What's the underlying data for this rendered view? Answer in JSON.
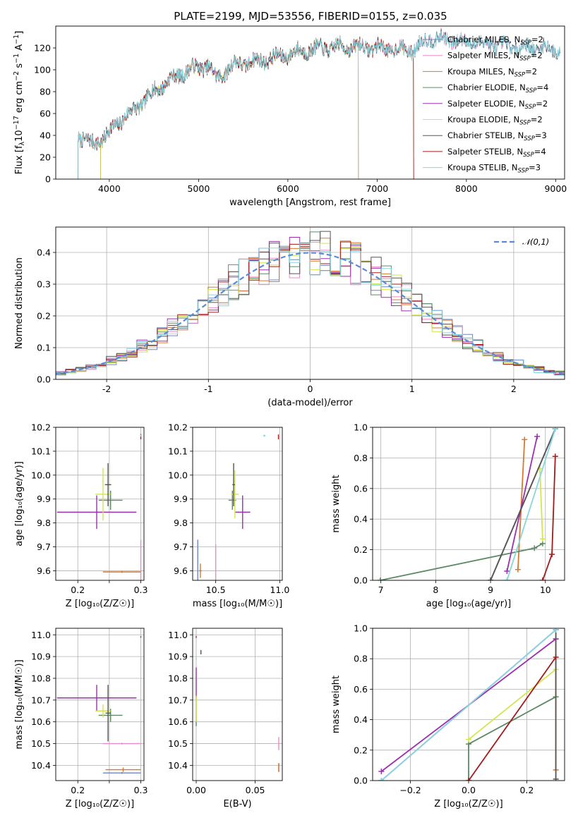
{
  "figure": {
    "title": "PLATE=2199, MJD=53556, FIBERID=0155, z=0.035"
  },
  "series_style": [
    {
      "id": "chabrier_miles",
      "color": "#6b86c8"
    },
    {
      "id": "salpeter_miles",
      "color": "#e88bc8"
    },
    {
      "id": "kroupa_miles",
      "color": "#d9782d"
    },
    {
      "id": "chabrier_elodie",
      "color": "#5d8a64"
    },
    {
      "id": "salpeter_elodie",
      "color": "#9b2fb0"
    },
    {
      "id": "kroupa_elodie",
      "color": "#d2e64f"
    },
    {
      "id": "chabrier_stelib",
      "color": "#555555"
    },
    {
      "id": "salpeter_stelib",
      "color": "#a31a1a"
    },
    {
      "id": "kroupa_stelib",
      "color": "#86d6df"
    }
  ],
  "chart_data": [
    {
      "id": "spectrum",
      "type": "line",
      "xlabel": "wavelength [Angstrom, rest frame]",
      "ylabel_parts": [
        "Flux [f",
        "λ",
        "10",
        "−17",
        " erg cm",
        "−2",
        " s",
        "−1",
        " A",
        "−1",
        "]"
      ],
      "xlim": [
        3400,
        9100
      ],
      "ylim": [
        0,
        140
      ],
      "xticks": [
        4000,
        5000,
        6000,
        7000,
        8000,
        9000
      ],
      "yticks": [
        0,
        20,
        40,
        60,
        80,
        100,
        120
      ],
      "grid": false,
      "legend_position": "top-right",
      "series": [
        {
          "label": "Chabrier MILES, N",
          "sub": "SSP",
          "tail": "=2",
          "range": [
            3650,
            9050
          ]
        },
        {
          "label": "Salpeter MILES, N",
          "sub": "SSP",
          "tail": "=2",
          "range": [
            3650,
            9050
          ]
        },
        {
          "label": "Kroupa MILES, N",
          "sub": "SSP",
          "tail": "=2",
          "range": [
            3650,
            7410
          ]
        },
        {
          "label": "Chabrier ELODIE, N",
          "sub": "SSP",
          "tail": "=4",
          "range": [
            3900,
            6790
          ]
        },
        {
          "label": "Salpeter ELODIE, N",
          "sub": "SSP",
          "tail": "=2",
          "range": [
            3900,
            6790
          ]
        },
        {
          "label": "Kroupa ELODIE, N",
          "sub": "SSP",
          "tail": "=2",
          "range": [
            3900,
            6790
          ]
        },
        {
          "label": "Chabrier STELIB, N",
          "sub": "SSP",
          "tail": "=3",
          "range": [
            3650,
            9050
          ]
        },
        {
          "label": "Salpeter STELIB, N",
          "sub": "SSP",
          "tail": "=4",
          "range": [
            3650,
            7410
          ]
        },
        {
          "label": "Kroupa STELIB, N",
          "sub": "SSP",
          "tail": "=3",
          "range": [
            3650,
            9050
          ]
        }
      ],
      "continuum": {
        "x": [
          3650,
          3800,
          3950,
          4100,
          4300,
          4500,
          4700,
          4900,
          5100,
          5200,
          5400,
          5600,
          5800,
          6000,
          6200,
          6400,
          6600,
          6800,
          7000,
          7200,
          7400,
          7600,
          7800,
          8000,
          8200,
          8400,
          8600,
          8800,
          9050
        ],
        "y": [
          40,
          32,
          38,
          52,
          65,
          80,
          92,
          100,
          104,
          92,
          105,
          107,
          110,
          114,
          118,
          120,
          121,
          121,
          120,
          119,
          118,
          130,
          127,
          126,
          124,
          122,
          121,
          120,
          118
        ]
      }
    },
    {
      "id": "residual_histogram",
      "type": "histogram",
      "xlabel": "(data-model)/error",
      "ylabel": "Normed distribution",
      "xlim": [
        -2.5,
        2.5
      ],
      "ylim": [
        0,
        0.48
      ],
      "xticks": [
        -2,
        -1,
        0,
        1,
        2
      ],
      "yticks": [
        0.0,
        0.1,
        0.2,
        0.3,
        0.4
      ],
      "grid": true,
      "bin_width": 0.1,
      "reference_curve": {
        "label": "𝒩(0,1)",
        "mean": 0,
        "sigma": 1,
        "style": "dashed",
        "color": "#5b8ad6"
      },
      "legend_position": "top-right"
    },
    {
      "id": "age_vs_Z",
      "type": "errorbar",
      "xlabel": "Z [log₁₀(Z/Z☉)]",
      "ylabel": "age  [log₁₀(age/yr)]",
      "xlim": [
        0.165,
        0.305
      ],
      "ylim": [
        9.56,
        10.2
      ],
      "xticks": [
        0.2,
        0.25,
        0.3
      ],
      "xticklabels": [
        "0.2",
        "",
        "0.3"
      ],
      "yticks": [
        9.6,
        9.7,
        9.8,
        9.9,
        10.0,
        10.1,
        10.2
      ],
      "grid": true,
      "points": [
        {
          "series": "chabrier_miles",
          "x": 0.3,
          "xerr": 0.0,
          "y": 10.17,
          "yerr": 0.003
        },
        {
          "series": "salpeter_miles",
          "x": 0.3,
          "xerr": 0.0,
          "y": 9.6,
          "yerr": 0.13
        },
        {
          "series": "kroupa_miles",
          "x": 0.27,
          "xerr": 0.03,
          "y": 9.595,
          "yerr": 0.004
        },
        {
          "series": "chabrier_elodie",
          "x": 0.252,
          "xerr": 0.019,
          "y": 9.895,
          "yerr": 0.04
        },
        {
          "series": "salpeter_elodie",
          "x": 0.23,
          "xerr": 0.063,
          "y": 9.845,
          "yerr": 0.07
        },
        {
          "series": "kroupa_elodie",
          "x": 0.24,
          "xerr": 0.012,
          "y": 9.92,
          "yerr": 0.11
        },
        {
          "series": "chabrier_stelib",
          "x": 0.248,
          "xerr": 0.005,
          "y": 9.96,
          "yerr": 0.09
        },
        {
          "series": "salpeter_stelib",
          "x": 0.3,
          "xerr": 0.0,
          "y": 10.16,
          "yerr": 0.01
        },
        {
          "series": "kroupa_stelib",
          "x": 0.3,
          "xerr": 0.0,
          "y": 10.165,
          "yerr": 0.004
        }
      ]
    },
    {
      "id": "age_vs_mass",
      "type": "errorbar",
      "xlabel": "mass [log₁₀(M/M☉)]",
      "ylabel": "",
      "xlim": [
        10.32,
        11.02
      ],
      "ylim": [
        9.56,
        10.2
      ],
      "xticks": [
        10.5,
        11.0
      ],
      "xticklabels": [
        "10.5",
        "11.0"
      ],
      "yticks": [
        9.6,
        9.7,
        9.8,
        9.9,
        10.0,
        10.1,
        10.2
      ],
      "grid": true,
      "points": [
        {
          "series": "chabrier_miles",
          "x": 10.36,
          "xerr": 0.004,
          "y": 9.6,
          "yerr": 0.13
        },
        {
          "series": "salpeter_miles",
          "x": 10.5,
          "xerr": 0.004,
          "y": 9.6,
          "yerr": 0.11
        },
        {
          "series": "kroupa_miles",
          "x": 10.38,
          "xerr": 0.01,
          "y": 9.6,
          "yerr": 0.03
        },
        {
          "series": "chabrier_elodie",
          "x": 10.63,
          "xerr": 0.03,
          "y": 9.895,
          "yerr": 0.04
        },
        {
          "series": "salpeter_elodie",
          "x": 10.71,
          "xerr": 0.06,
          "y": 9.845,
          "yerr": 0.07
        },
        {
          "series": "kroupa_elodie",
          "x": 10.65,
          "xerr": 0.03,
          "y": 9.92,
          "yerr": 0.1
        },
        {
          "series": "chabrier_stelib",
          "x": 10.64,
          "xerr": 0.01,
          "y": 9.96,
          "yerr": 0.09
        },
        {
          "series": "salpeter_stelib",
          "x": 10.99,
          "xerr": 0.003,
          "y": 10.16,
          "yerr": 0.01
        },
        {
          "series": "kroupa_stelib",
          "x": 10.88,
          "xerr": 0.01,
          "y": 10.165,
          "yerr": 0.004
        }
      ]
    },
    {
      "id": "mass_weight_vs_age",
      "type": "line",
      "xlabel": "age  [log₁₀(age/yr)]",
      "ylabel": "mass weight",
      "xlim": [
        6.85,
        10.35
      ],
      "ylim": [
        0,
        1
      ],
      "xticks": [
        7,
        8,
        9,
        10
      ],
      "yticks": [
        0.0,
        0.2,
        0.4,
        0.6,
        0.8,
        1.0
      ],
      "grid": true,
      "series": [
        {
          "series": "chabrier_miles",
          "x": [
            9.0,
            10.18
          ],
          "y": [
            0.0,
            0.99
          ]
        },
        {
          "series": "salpeter_miles",
          "x": [
            9.0,
            10.18
          ],
          "y": [
            0.0,
            0.99
          ]
        },
        {
          "series": "kroupa_miles",
          "x": [
            9.5,
            9.62
          ],
          "y": [
            0.07,
            0.92
          ]
        },
        {
          "series": "chabrier_elodie",
          "x": [
            6.99,
            9.8,
            9.95
          ],
          "y": [
            0.0,
            0.21,
            0.24
          ]
        },
        {
          "series": "salpeter_elodie",
          "x": [
            9.3,
            9.85
          ],
          "y": [
            0.06,
            0.94
          ]
        },
        {
          "series": "kroupa_elodie",
          "x": [
            9.9,
            9.95
          ],
          "y": [
            0.73,
            0.27
          ]
        },
        {
          "series": "chabrier_stelib",
          "x": [
            9.0,
            10.18
          ],
          "y": [
            0.0,
            0.99
          ]
        },
        {
          "series": "salpeter_stelib",
          "x": [
            9.95,
            10.12,
            10.18
          ],
          "y": [
            0.0,
            0.17,
            0.81
          ]
        },
        {
          "series": "kroupa_stelib",
          "x": [
            9.3,
            10.18
          ],
          "y": [
            0.0,
            0.99
          ]
        }
      ]
    },
    {
      "id": "mass_vs_Z",
      "type": "errorbar",
      "xlabel": "Z [log₁₀(Z/Z☉)]",
      "ylabel": "mass [log₁₀(M/M☉)]",
      "xlim": [
        0.165,
        0.305
      ],
      "ylim": [
        10.33,
        11.03
      ],
      "xticks": [
        0.2,
        0.25,
        0.3
      ],
      "xticklabels": [
        "0.2",
        "",
        "0.3"
      ],
      "yticks": [
        10.4,
        10.5,
        10.6,
        10.7,
        10.8,
        10.9,
        11.0
      ],
      "grid": true,
      "points": [
        {
          "series": "chabrier_miles",
          "x": 0.27,
          "xerr": 0.03,
          "y": 10.365,
          "yerr": 0.004
        },
        {
          "series": "salpeter_miles",
          "x": 0.27,
          "xerr": 0.03,
          "y": 10.5,
          "yerr": 0.004
        },
        {
          "series": "kroupa_miles",
          "x": 0.272,
          "xerr": 0.028,
          "y": 10.38,
          "yerr": 0.01
        },
        {
          "series": "chabrier_elodie",
          "x": 0.252,
          "xerr": 0.019,
          "y": 10.63,
          "yerr": 0.03
        },
        {
          "series": "salpeter_elodie",
          "x": 0.23,
          "xerr": 0.063,
          "y": 10.71,
          "yerr": 0.06
        },
        {
          "series": "kroupa_elodie",
          "x": 0.24,
          "xerr": 0.012,
          "y": 10.65,
          "yerr": 0.03
        },
        {
          "series": "chabrier_stelib",
          "x": 0.248,
          "xerr": 0.004,
          "y": 10.64,
          "yerr": 0.13
        },
        {
          "series": "salpeter_stelib",
          "x": 0.3,
          "xerr": 0.0,
          "y": 10.99,
          "yerr": 0.003
        },
        {
          "series": "kroupa_stelib",
          "x": 0.3,
          "xerr": 0.0,
          "y": 10.89,
          "yerr": 0.005
        }
      ]
    },
    {
      "id": "mass_vs_ebv",
      "type": "errorbar",
      "xlabel": "E(B-V)",
      "ylabel": "",
      "xlim": [
        -0.003,
        0.073
      ],
      "ylim": [
        10.33,
        11.03
      ],
      "xticks": [
        0.0,
        0.05
      ],
      "xticklabels": [
        "0.00",
        "0.05"
      ],
      "yticks": [
        10.4,
        10.5,
        10.6,
        10.7,
        10.8,
        10.9,
        11.0
      ],
      "grid": true,
      "points": [
        {
          "series": "chabrier_miles",
          "x": 0.07,
          "xerr": 0.0,
          "y": 10.39,
          "yerr": 0.02
        },
        {
          "series": "salpeter_miles",
          "x": 0.07,
          "xerr": 0.0,
          "y": 10.5,
          "yerr": 0.03
        },
        {
          "series": "kroupa_miles",
          "x": 0.07,
          "xerr": 0.0,
          "y": 10.39,
          "yerr": 0.02
        },
        {
          "series": "chabrier_elodie",
          "x": 0.0,
          "xerr": 0.0,
          "y": 10.65,
          "yerr": 0.07
        },
        {
          "series": "salpeter_elodie",
          "x": 0.0,
          "xerr": 0.0,
          "y": 10.78,
          "yerr": 0.07
        },
        {
          "series": "kroupa_elodie",
          "x": 0.0,
          "xerr": 0.0,
          "y": 10.66,
          "yerr": 0.06
        },
        {
          "series": "chabrier_stelib",
          "x": 0.004,
          "xerr": 0.0,
          "y": 10.92,
          "yerr": 0.01
        },
        {
          "series": "salpeter_stelib",
          "x": 0.0,
          "xerr": 0.0,
          "y": 10.99,
          "yerr": 0.004
        },
        {
          "series": "kroupa_stelib",
          "x": 0.0,
          "xerr": 0.0,
          "y": 10.89,
          "yerr": 0.004
        }
      ]
    },
    {
      "id": "mass_weight_vs_Z",
      "type": "line",
      "xlabel": "Z [log₁₀(Z/Z☉)]",
      "ylabel": "mass weight",
      "xlim": [
        -0.33,
        0.33
      ],
      "ylim": [
        0,
        1
      ],
      "xticks": [
        -0.2,
        0.0,
        0.2
      ],
      "xticklabels": [
        "−0.2",
        "0.0",
        "0.2"
      ],
      "yticks": [
        0.0,
        0.2,
        0.4,
        0.6,
        0.8,
        1.0
      ],
      "grid": true,
      "series": [
        {
          "series": "chabrier_miles",
          "x": [
            -0.3,
            0.3
          ],
          "y": [
            0.0,
            0.99
          ]
        },
        {
          "series": "salpeter_miles",
          "x": [
            -0.3,
            0.3
          ],
          "y": [
            0.0,
            0.99
          ]
        },
        {
          "series": "kroupa_miles",
          "x": [
            0.3,
            0.3
          ],
          "y": [
            0.07,
            0.93
          ]
        },
        {
          "series": "chabrier_elodie",
          "x": [
            0.0,
            0.0,
            0.3
          ],
          "y": [
            0.0,
            0.24,
            0.55
          ]
        },
        {
          "series": "salpeter_elodie",
          "x": [
            -0.3,
            0.3
          ],
          "y": [
            0.06,
            0.93
          ]
        },
        {
          "series": "kroupa_elodie",
          "x": [
            0.0,
            0.3
          ],
          "y": [
            0.27,
            0.73
          ]
        },
        {
          "series": "chabrier_stelib",
          "x": [
            0.3,
            0.3
          ],
          "y": [
            0.01,
            0.99
          ]
        },
        {
          "series": "salpeter_stelib",
          "x": [
            0.0,
            0.3
          ],
          "y": [
            0.0,
            0.81
          ]
        },
        {
          "series": "kroupa_stelib",
          "x": [
            -0.3,
            0.3
          ],
          "y": [
            0.0,
            0.99
          ]
        }
      ]
    }
  ]
}
